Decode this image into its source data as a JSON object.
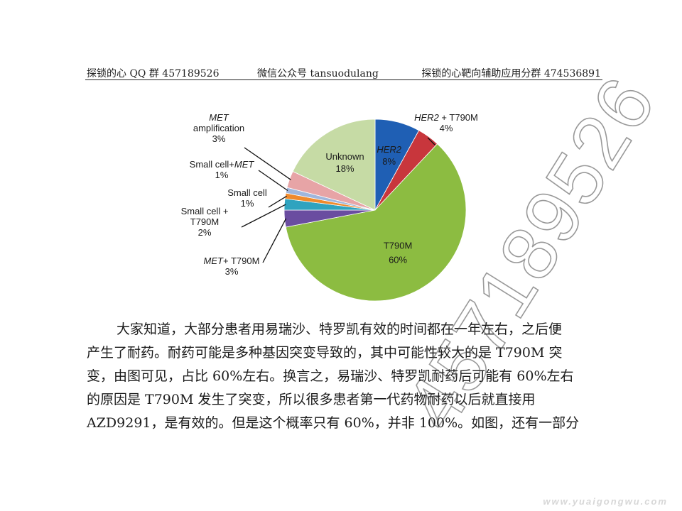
{
  "header": {
    "left": "探锁的心 QQ 群 457189526",
    "middle": "微信公众号 tansuodulang",
    "right": "探锁的心靶向辅助应用分群 474536891"
  },
  "chart_data": {
    "type": "pie",
    "slices": [
      {
        "label": "HER2",
        "value": 8,
        "color": "#1f5fb4",
        "label_parts": [
          {
            "t": "HER2",
            "italic": true
          }
        ],
        "pct": "8%"
      },
      {
        "label": "HER2 + T790M",
        "value": 4,
        "color": "#c8363c",
        "label_parts": [
          {
            "t": "HER2",
            "italic": true
          },
          {
            "t": " + T790M",
            "italic": false
          }
        ],
        "pct": "4%"
      },
      {
        "label": "T790M",
        "value": 60,
        "color": "#8cbc41",
        "label_parts": [
          {
            "t": "T790M",
            "italic": false
          }
        ],
        "pct": "60%"
      },
      {
        "label": "MET+ T790M",
        "value": 3,
        "color": "#6a4da0",
        "label_parts": [
          {
            "t": "MET",
            "italic": true
          },
          {
            "t": "+ T790M",
            "italic": false
          }
        ],
        "pct": "3%"
      },
      {
        "label": "Small cell + T790M",
        "value": 2,
        "color": "#2fa3bf",
        "label_parts": [
          {
            "t": "Small cell +",
            "italic": false
          },
          {
            "t": "T790M",
            "italic": false,
            "newline": true
          }
        ],
        "pct": "2%"
      },
      {
        "label": "Small cell",
        "value": 1,
        "color": "#f08a2c",
        "label_parts": [
          {
            "t": "Small cell",
            "italic": false
          }
        ],
        "pct": "1%"
      },
      {
        "label": "Small cell+MET",
        "value": 1,
        "color": "#9fb6dc",
        "label_parts": [
          {
            "t": "Small cell+",
            "italic": false
          },
          {
            "t": "MET",
            "italic": true
          }
        ],
        "pct": "1%"
      },
      {
        "label": "MET amplification",
        "value": 3,
        "color": "#e7a4a6",
        "label_parts": [
          {
            "t": "MET",
            "italic": true
          },
          {
            "t": "amplification",
            "italic": false,
            "newline": true
          }
        ],
        "pct": "3%"
      },
      {
        "label": "Unknown",
        "value": 18,
        "color": "#c6dba5",
        "label_parts": [
          {
            "t": "Unknown",
            "italic": false
          }
        ],
        "pct": "18%"
      }
    ]
  },
  "body_text": [
    "大家知道，大部分患者用易瑞沙、特罗凯有效的时间都在一年左右，之后便",
    "产生了耐药。耐药可能是多种基因突变导致的，其中可能性较大的是 T790M 突",
    "变，由图可见，占比 60%左右。换言之，易瑞沙、特罗凯耐药后可能有 60%左右",
    "的原因是  T790M  发生了突变，所以很多患者第一代药物耐药以后就直接用",
    "AZD9291，是有效的。但是这个概率只有 60%，并非 100%。如图，还有一部分"
  ],
  "watermark": "457189526",
  "site_mark": "www.yuaigongwu.com"
}
